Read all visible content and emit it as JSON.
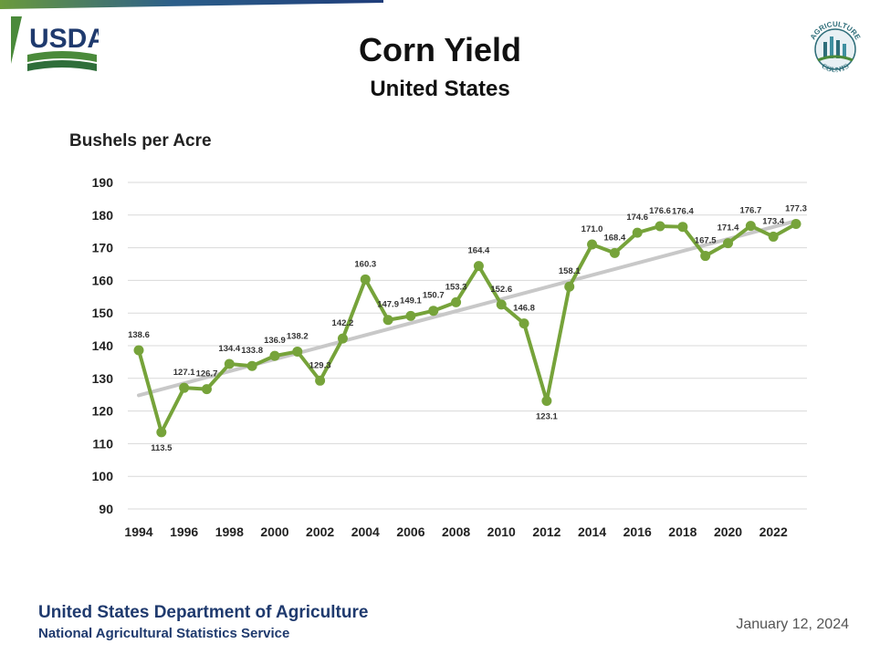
{
  "header": {
    "title": "Corn Yield",
    "subtitle": "United States",
    "usda_logo_text": "USDA",
    "ag_logo_text_top": "AGRICULTURE",
    "ag_logo_text_bottom": "COUNTS"
  },
  "footer": {
    "org": "United States Department of Agriculture",
    "sub": "National Agricultural Statistics Service",
    "date": "January 12, 2024"
  },
  "colors": {
    "line": "#76a33a",
    "trend": "#c8c8c8",
    "grid": "#d9d9d9",
    "usda_blue": "#1f3a6e",
    "usda_green": "#4a8a3a"
  },
  "chart_data": {
    "type": "line",
    "ylabel": "Bushels per Acre",
    "ylim": [
      90,
      190
    ],
    "yticks": [
      "90",
      "100",
      "110",
      "120",
      "130",
      "140",
      "150",
      "160",
      "170",
      "180",
      "190"
    ],
    "xticks": [
      "1994",
      "1996",
      "1998",
      "2000",
      "2002",
      "2004",
      "2006",
      "2008",
      "2010",
      "2012",
      "2014",
      "2016",
      "2018",
      "2020",
      "2022"
    ],
    "grid": true,
    "legend": "none",
    "x": [
      1994,
      1995,
      1996,
      1997,
      1998,
      1999,
      2000,
      2001,
      2002,
      2003,
      2004,
      2005,
      2006,
      2007,
      2008,
      2009,
      2010,
      2011,
      2012,
      2013,
      2014,
      2015,
      2016,
      2017,
      2018,
      2019,
      2020,
      2021,
      2022,
      2023
    ],
    "values": [
      138.6,
      113.5,
      127.1,
      126.7,
      134.4,
      133.8,
      136.9,
      138.2,
      129.3,
      142.2,
      160.3,
      147.9,
      149.1,
      150.7,
      153.3,
      164.4,
      152.6,
      146.8,
      123.1,
      158.1,
      171.0,
      168.4,
      174.6,
      176.6,
      176.4,
      167.5,
      171.4,
      176.7,
      173.4,
      177.3
    ],
    "labels": [
      "138.6",
      "113.5",
      "127.1",
      "126.7",
      "134.4",
      "133.8",
      "136.9",
      "138.2",
      "129.3",
      "142.2",
      "160.3",
      "147.9",
      "149.1",
      "150.7",
      "153.3",
      "164.4",
      "152.6",
      "146.8",
      "123.1",
      "158.1",
      "171.0",
      "168.4",
      "174.6",
      "176.6",
      "176.4",
      "167.5",
      "171.4",
      "176.7",
      "173.4",
      "177.3"
    ],
    "trend": {
      "x": [
        1994,
        2023
      ],
      "values": [
        124.8,
        178.2
      ]
    }
  }
}
